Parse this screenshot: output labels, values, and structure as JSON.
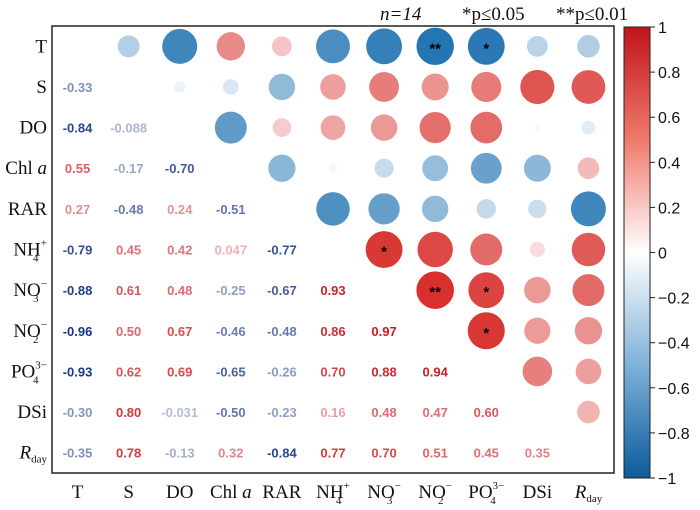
{
  "chart_data": {
    "type": "heatmap",
    "subtype": "correlation-matrix",
    "variables": [
      {
        "main": "T",
        "sub": "",
        "sup": ""
      },
      {
        "main": "S",
        "sub": "",
        "sup": ""
      },
      {
        "main": "DO",
        "sub": "",
        "sup": ""
      },
      {
        "main": "Chl ",
        "sub": "",
        "sup": "",
        "italic": "a"
      },
      {
        "main": "RAR",
        "sub": "",
        "sup": ""
      },
      {
        "main": "NH",
        "sub": "4",
        "sup": "+"
      },
      {
        "main": "NO",
        "sub": "3",
        "sup": "−"
      },
      {
        "main": "NO",
        "sub": "2",
        "sup": "−"
      },
      {
        "main": "PO",
        "sub": "4",
        "sup": "3−"
      },
      {
        "main": "DSi",
        "sub": "",
        "sup": ""
      },
      {
        "main": "",
        "sub": "day",
        "sup": "",
        "italic": "R"
      }
    ],
    "lower_triangle_labels": [
      [],
      [
        "-0.33"
      ],
      [
        "-0.84",
        "-0.088"
      ],
      [
        "0.55",
        "-0.17",
        "-0.70"
      ],
      [
        "0.27",
        "-0.48",
        "0.24",
        "-0.51"
      ],
      [
        "-0.79",
        "0.45",
        "0.42",
        "0.047",
        "-0.77"
      ],
      [
        "-0.88",
        "0.61",
        "0.48",
        "-0.25",
        "-0.67",
        "0.93"
      ],
      [
        "-0.96",
        "0.50",
        "0.67",
        "-0.46",
        "-0.48",
        "0.86",
        "0.97"
      ],
      [
        "-0.93",
        "0.62",
        "0.69",
        "-0.65",
        "-0.26",
        "0.70",
        "0.88",
        "0.94"
      ],
      [
        "-0.30",
        "0.80",
        "-0.031",
        "-0.50",
        "-0.23",
        "0.16",
        "0.48",
        "0.47",
        "0.60"
      ],
      [
        "-0.35",
        "0.78",
        "-0.13",
        "0.32",
        "-0.84",
        "0.77",
        "0.70",
        "0.51",
        "0.45",
        "0.35"
      ]
    ],
    "upper_triangle_values": [
      [
        null,
        -0.33,
        -0.84,
        0.55,
        0.27,
        -0.79,
        -0.88,
        -0.96,
        -0.93,
        -0.3,
        -0.35
      ],
      [
        null,
        null,
        -0.088,
        -0.17,
        -0.48,
        0.45,
        0.61,
        0.5,
        0.62,
        0.8,
        0.78
      ],
      [
        null,
        null,
        null,
        -0.7,
        0.24,
        0.42,
        0.48,
        0.67,
        0.69,
        -0.031,
        -0.13
      ],
      [
        null,
        null,
        null,
        null,
        -0.51,
        0.047,
        -0.25,
        -0.46,
        -0.65,
        -0.5,
        0.32
      ],
      [
        null,
        null,
        null,
        null,
        null,
        -0.77,
        -0.67,
        -0.48,
        -0.26,
        -0.23,
        -0.84
      ],
      [
        null,
        null,
        null,
        null,
        null,
        null,
        0.93,
        0.86,
        0.7,
        0.16,
        0.77
      ],
      [
        null,
        null,
        null,
        null,
        null,
        null,
        null,
        0.97,
        0.88,
        0.48,
        0.7
      ],
      [
        null,
        null,
        null,
        null,
        null,
        null,
        null,
        null,
        0.94,
        0.47,
        0.51
      ],
      [
        null,
        null,
        null,
        null,
        null,
        null,
        null,
        null,
        null,
        0.6,
        0.45
      ],
      [
        null,
        null,
        null,
        null,
        null,
        null,
        null,
        null,
        null,
        null,
        0.35
      ],
      [
        null,
        null,
        null,
        null,
        null,
        null,
        null,
        null,
        null,
        null,
        null
      ]
    ],
    "significance_markers": [
      {
        "row": 0,
        "col": 7,
        "mark": "**"
      },
      {
        "row": 0,
        "col": 8,
        "mark": "*"
      },
      {
        "row": 5,
        "col": 6,
        "mark": "*"
      },
      {
        "row": 6,
        "col": 7,
        "mark": "**"
      },
      {
        "row": 6,
        "col": 8,
        "mark": "*"
      },
      {
        "row": 7,
        "col": 8,
        "mark": "*"
      }
    ],
    "legend_text": {
      "n": "n=14",
      "p05": "*p≤0.05",
      "p01": "**p≤0.01"
    },
    "colorbar": {
      "range": [
        -1,
        1
      ],
      "ticks": [
        "1",
        "0.8",
        "0.6",
        "0.4",
        "0.2",
        "0",
        "−0.2",
        "−0.4",
        "−0.6",
        "−0.8",
        "−1"
      ],
      "colors": {
        "negative": "#1a6fb0",
        "zero": "#ffffff",
        "positive": "#d62a26"
      }
    }
  }
}
